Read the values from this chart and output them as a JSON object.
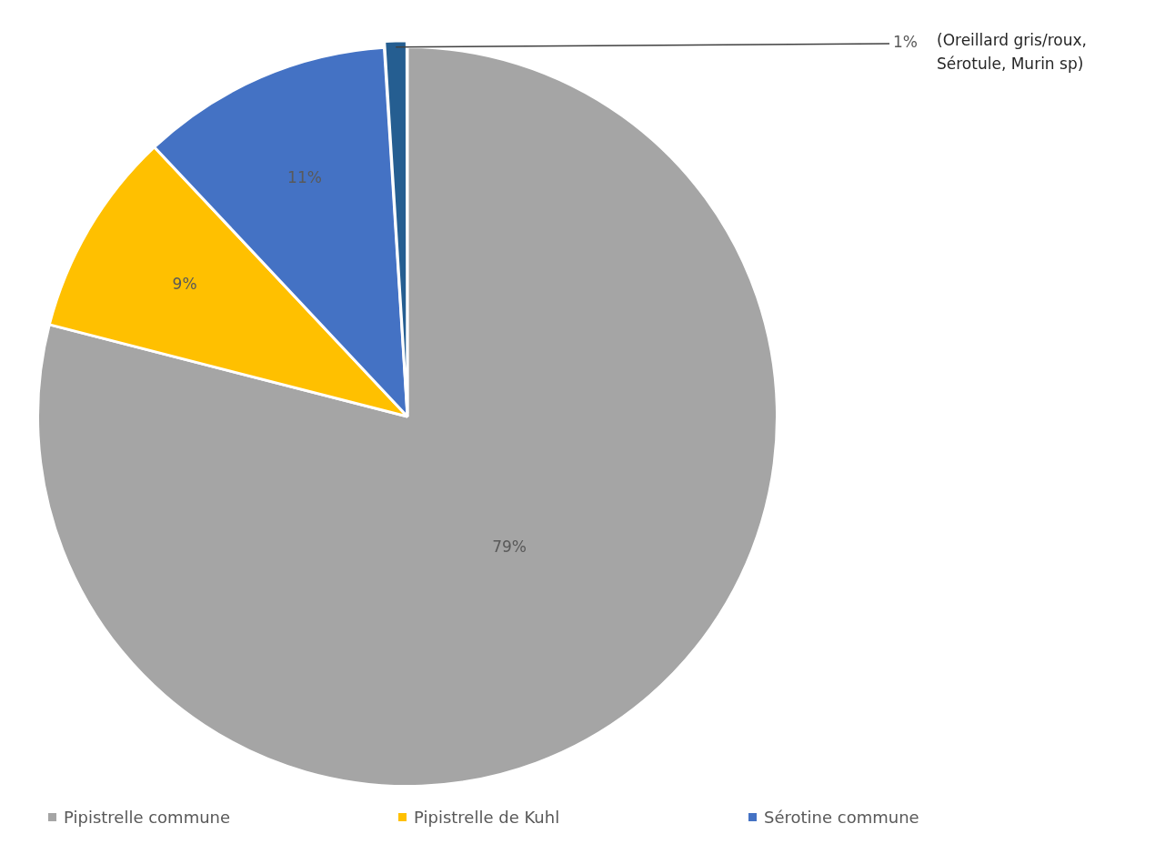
{
  "chart_data": {
    "type": "pie",
    "categories": [
      "Pipistrelle commune",
      "Pipistrelle de Kuhl",
      "Sérotine commune",
      null
    ],
    "values": [
      79,
      9,
      11,
      1
    ],
    "colors": [
      "#a5a5a5",
      "#ffc000",
      "#4472c4",
      "#255e91"
    ],
    "value_labels": [
      "79%",
      "9%",
      "11%",
      "1%"
    ],
    "annotations": [
      "(Oreillard gris/roux,\nSérotule, Murin sp)"
    ],
    "legend": "bottom"
  }
}
